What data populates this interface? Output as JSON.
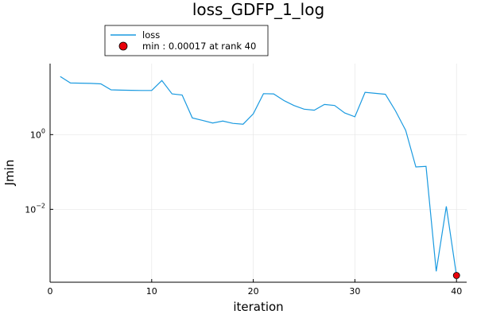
{
  "chart_data": {
    "type": "line",
    "title": "loss_GDFP_1_log",
    "xlabel": "iteration",
    "ylabel": "Jmin",
    "xlim": [
      0,
      41
    ],
    "ylim_log10": [
      -3.95,
      1.9
    ],
    "y_scale": "log10",
    "grid": true,
    "legend_position": "top-left, outside plot",
    "x_ticks": [
      0,
      10,
      20,
      30,
      40
    ],
    "x_tick_labels": [
      "0",
      "10",
      "20",
      "30",
      "40"
    ],
    "y_ticks_log10": [
      0,
      -2
    ],
    "y_tick_labels": [
      {
        "base": "10",
        "exp": "0"
      },
      {
        "base": "10",
        "exp": "−2"
      }
    ],
    "series": [
      {
        "name": "loss",
        "color": "#1a9ae0",
        "x": [
          1,
          2,
          3,
          4,
          5,
          6,
          7,
          8,
          9,
          10,
          11,
          12,
          13,
          14,
          15,
          16,
          17,
          18,
          19,
          20,
          21,
          22,
          23,
          24,
          25,
          26,
          27,
          28,
          29,
          30,
          31,
          32,
          33,
          34,
          35,
          36,
          37,
          38,
          39,
          40
        ],
        "y": [
          36,
          24,
          23.8,
          23.5,
          22.8,
          15.8,
          15.5,
          15.3,
          15.2,
          15.2,
          28,
          12.3,
          11.5,
          2.8,
          2.4,
          2.05,
          2.3,
          2.0,
          1.9,
          3.6,
          12.5,
          12.3,
          8.2,
          6.0,
          4.8,
          4.5,
          6.4,
          6.0,
          3.8,
          3.0,
          13.5,
          12.7,
          12.0,
          4.3,
          1.3,
          0.136,
          0.141,
          0.00022,
          0.012,
          0.00017
        ]
      }
    ],
    "marker": {
      "name": "min : 0.00017 at rank 40",
      "x": 40,
      "y": 0.00017,
      "color": "#e8000b"
    }
  }
}
